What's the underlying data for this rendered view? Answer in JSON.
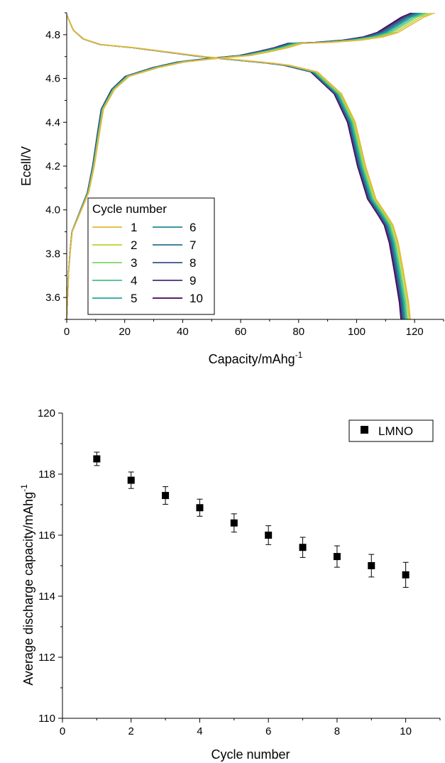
{
  "chart_data": [
    {
      "type": "line",
      "title": "",
      "xlabel": "Capacity/mAhg",
      "xlabel_sup": "-1",
      "ylabel": "Ecell/V",
      "xlim": [
        0,
        130
      ],
      "ylim": [
        3.5,
        4.9
      ],
      "xticks": [
        0,
        20,
        40,
        60,
        80,
        100,
        120
      ],
      "yticks": [
        3.6,
        3.8,
        4.0,
        4.2,
        4.4,
        4.6,
        4.8
      ],
      "legend": {
        "title": "Cycle number",
        "placement": "bottom-left"
      },
      "series": [
        {
          "name": "1",
          "color": "#e8b43c",
          "discharge_end": 118.5,
          "charge_end": 127.0
        },
        {
          "name": "2",
          "color": "#bfd22c",
          "discharge_end": 118.1,
          "charge_end": 125.8
        },
        {
          "name": "3",
          "color": "#7fd36a",
          "discharge_end": 117.6,
          "charge_end": 124.6
        },
        {
          "name": "4",
          "color": "#44bf8a",
          "discharge_end": 117.2,
          "charge_end": 123.6
        },
        {
          "name": "5",
          "color": "#25a59a",
          "discharge_end": 116.8,
          "charge_end": 122.6
        },
        {
          "name": "6",
          "color": "#218a93",
          "discharge_end": 116.5,
          "charge_end": 121.8
        },
        {
          "name": "7",
          "color": "#2c6f8e",
          "discharge_end": 116.2,
          "charge_end": 121.0
        },
        {
          "name": "8",
          "color": "#3a508a",
          "discharge_end": 115.9,
          "charge_end": 120.3
        },
        {
          "name": "9",
          "color": "#472c7a",
          "discharge_end": 115.6,
          "charge_end": 119.6
        },
        {
          "name": "10",
          "color": "#440154",
          "discharge_end": 115.3,
          "charge_end": 119.0
        }
      ]
    },
    {
      "type": "scatter",
      "title": "",
      "xlabel": "Cycle number",
      "ylabel": "Average discharge capacity/mAhg",
      "ylabel_sup": "-1",
      "xlim": [
        0,
        11
      ],
      "ylim": [
        110,
        120
      ],
      "xticks": [
        0,
        2,
        4,
        6,
        8,
        10
      ],
      "yticks": [
        110,
        112,
        114,
        116,
        118,
        120
      ],
      "legend": {
        "placement": "top-right"
      },
      "series": [
        {
          "name": "LMNO",
          "color": "#000000",
          "x": [
            1,
            2,
            3,
            4,
            5,
            6,
            7,
            8,
            9,
            10
          ],
          "y": [
            118.5,
            117.8,
            117.3,
            116.9,
            116.4,
            116.0,
            115.6,
            115.3,
            115.0,
            114.7
          ],
          "err": [
            0.22,
            0.27,
            0.29,
            0.28,
            0.3,
            0.31,
            0.33,
            0.35,
            0.37,
            0.41
          ]
        }
      ]
    }
  ]
}
